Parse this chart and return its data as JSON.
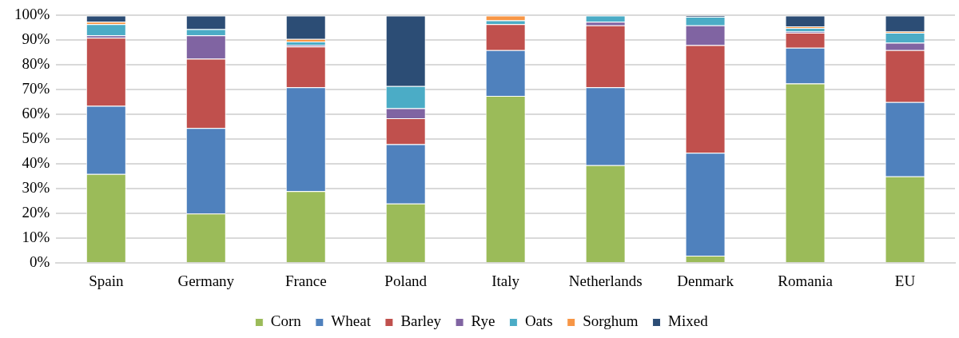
{
  "chart_data": {
    "type": "bar",
    "stacked": true,
    "categories": [
      "Spain",
      "Germany",
      "France",
      "Poland",
      "Italy",
      "Netherlands",
      "Denmark",
      "Romania",
      "EU"
    ],
    "series": [
      {
        "name": "Corn",
        "color": "#9bbb59",
        "values": [
          36,
          20,
          29,
          24,
          67.5,
          39.5,
          3,
          72.5,
          35
        ]
      },
      {
        "name": "Wheat",
        "color": "#4f81bd",
        "values": [
          27.5,
          34.5,
          42,
          24,
          18.5,
          31.5,
          41.5,
          14.5,
          30
        ]
      },
      {
        "name": "Barley",
        "color": "#c0504d",
        "values": [
          27.5,
          28,
          16.5,
          10.5,
          10.5,
          25,
          43.5,
          6,
          21
        ]
      },
      {
        "name": "Rye",
        "color": "#8064a2",
        "values": [
          1,
          9.5,
          0.5,
          4,
          0,
          1.5,
          8,
          0.5,
          3
        ]
      },
      {
        "name": "Oats",
        "color": "#4bacc6",
        "values": [
          4.5,
          2.5,
          1.5,
          9,
          1.5,
          2.5,
          3.5,
          1.5,
          4
        ]
      },
      {
        "name": "Sorghum",
        "color": "#f79646",
        "values": [
          1,
          0,
          1,
          0,
          2,
          0,
          0,
          0.5,
          0.5
        ]
      },
      {
        "name": "Mixed",
        "color": "#2c4d75",
        "values": [
          2.5,
          5.5,
          9.5,
          28.5,
          0,
          0,
          0.5,
          4.5,
          6.5
        ]
      }
    ],
    "ylim": [
      0,
      100
    ],
    "yticks": [
      {
        "value": 0,
        "label": "0%"
      },
      {
        "value": 10,
        "label": "10%"
      },
      {
        "value": 20,
        "label": "20%"
      },
      {
        "value": 30,
        "label": "30%"
      },
      {
        "value": 40,
        "label": "40%"
      },
      {
        "value": 50,
        "label": "50%"
      },
      {
        "value": 60,
        "label": "60%"
      },
      {
        "value": 70,
        "label": "70%"
      },
      {
        "value": 80,
        "label": "80%"
      },
      {
        "value": 90,
        "label": "90%"
      },
      {
        "value": 100,
        "label": "100%"
      }
    ],
    "grid": "y",
    "legend": "bottom"
  }
}
